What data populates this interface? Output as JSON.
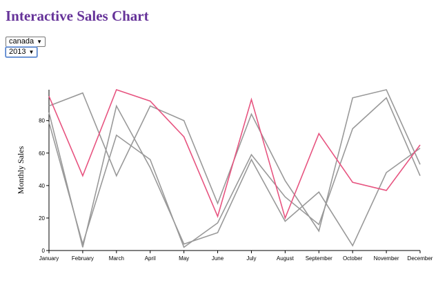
{
  "page": {
    "title": "Interactive Sales Chart",
    "title_color": "#663399"
  },
  "controls": {
    "country_value": "canada",
    "year_value": "2013",
    "arrow_icon": "triangle-down"
  },
  "chart_data": {
    "type": "line",
    "title": "",
    "xlabel": "",
    "ylabel": "Monthly Sales",
    "categories": [
      "January",
      "February",
      "March",
      "April",
      "May",
      "June",
      "July",
      "August",
      "September",
      "October",
      "November",
      "December"
    ],
    "yticks": [
      0,
      20,
      40,
      60,
      80
    ],
    "ylim": [
      0,
      99
    ],
    "grid": false,
    "series": [
      {
        "color": "#e75480",
        "highlighted": true,
        "values": [
          95,
          46,
          99,
          92,
          70,
          21,
          93,
          20,
          72,
          42,
          37,
          65
        ]
      },
      {
        "color": "#999999",
        "highlighted": false,
        "values": [
          89,
          97,
          46,
          89,
          80,
          29,
          84,
          43,
          12,
          94,
          99,
          53
        ]
      },
      {
        "color": "#999999",
        "highlighted": false,
        "values": [
          85,
          2,
          89,
          51,
          4,
          11,
          56,
          18,
          36,
          3,
          48,
          63
        ]
      },
      {
        "color": "#999999",
        "highlighted": false,
        "values": [
          79,
          4,
          71,
          56,
          2,
          17,
          59,
          33,
          16,
          75,
          94,
          46
        ]
      }
    ]
  }
}
